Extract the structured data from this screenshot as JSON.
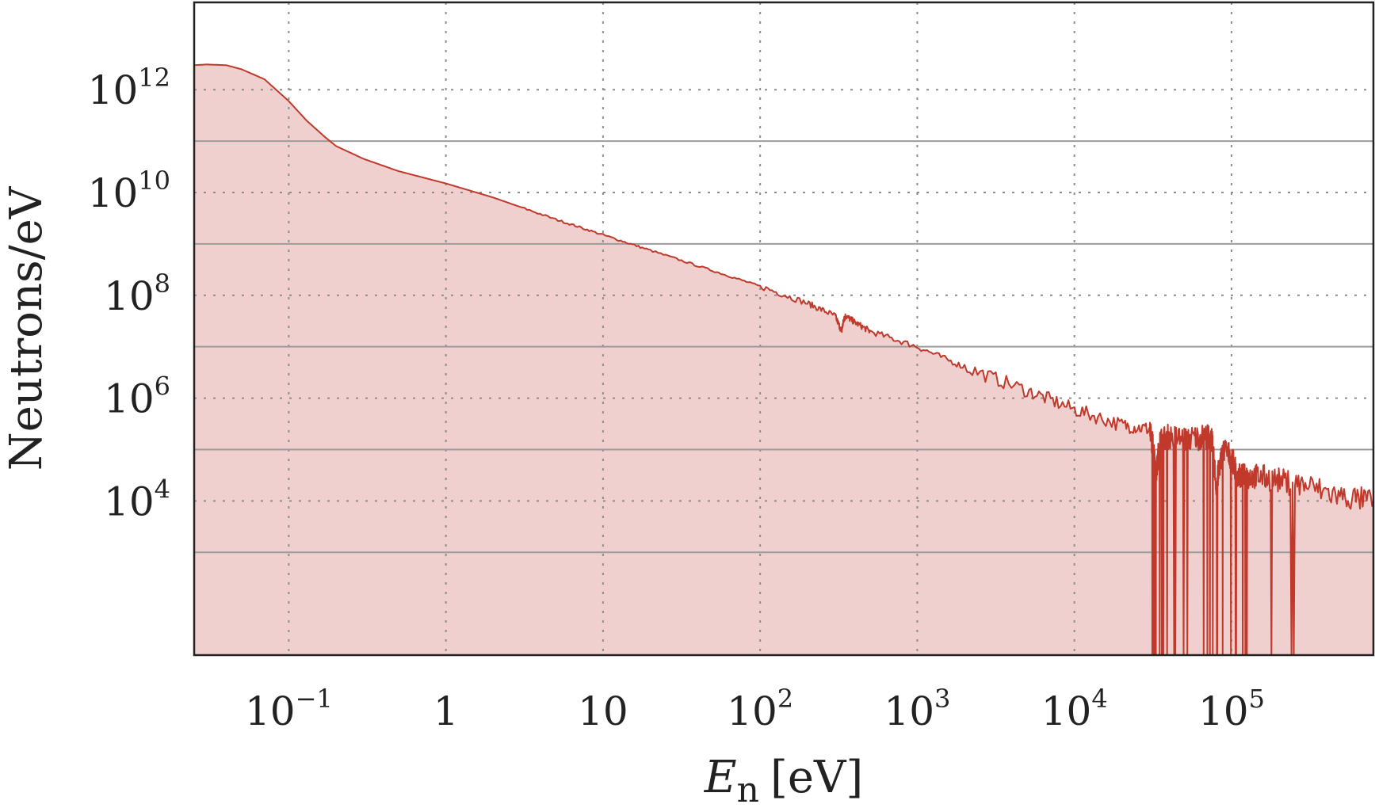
{
  "chart_data": {
    "type": "area",
    "xlabel_main": "E",
    "xlabel_sub": "n",
    "xlabel_unit": "[eV]",
    "ylabel": "Neutrons/eV",
    "xscale": "log",
    "yscale": "log",
    "xlim": [
      0.025,
      800000
    ],
    "ylim": [
      10,
      50000000000000.0
    ],
    "grid": "dotted major gridlines and solid gray gridlines at odd decades",
    "legend": "none",
    "colors": {
      "line": "#c0392b",
      "fill": "#efd0cf",
      "grid_dotted": "#8c8c8c",
      "grid_solid": "#9b9b9b"
    },
    "x_ticks": [
      {
        "value": 0.1,
        "base": "10",
        "exp": "−1"
      },
      {
        "value": 1,
        "base": "1",
        "exp": ""
      },
      {
        "value": 10,
        "base": "10",
        "exp": ""
      },
      {
        "value": 100,
        "base": "10",
        "exp": "2"
      },
      {
        "value": 1000,
        "base": "10",
        "exp": "3"
      },
      {
        "value": 10000,
        "base": "10",
        "exp": "4"
      },
      {
        "value": 100000,
        "base": "10",
        "exp": "5"
      }
    ],
    "y_ticks": [
      {
        "value": 1000000000000.0,
        "base": "10",
        "exp": "12"
      },
      {
        "value": 10000000000.0,
        "base": "10",
        "exp": "10"
      },
      {
        "value": 100000000.0,
        "base": "10",
        "exp": "8"
      },
      {
        "value": 1000000.0,
        "base": "10",
        "exp": "6"
      },
      {
        "value": 10000.0,
        "base": "10",
        "exp": "4"
      }
    ],
    "solid_gridlines_y": [
      100000000000.0,
      1000000000.0,
      10000000.0,
      100000.0,
      1000.0
    ],
    "series": [
      {
        "x": [
          0.025,
          0.03,
          0.04,
          0.05,
          0.07,
          0.1,
          0.13,
          0.17,
          0.2,
          0.3,
          0.5,
          1,
          2,
          5,
          10,
          20,
          50,
          100,
          200,
          300,
          330,
          340,
          350,
          400,
          500,
          1000,
          2000,
          5000,
          10000,
          20000,
          30000,
          32000,
          33000,
          35000,
          40000,
          50000,
          60000,
          70000,
          75000,
          80000,
          85000,
          90000,
          100000,
          110000,
          120000,
          130000,
          150000,
          200000,
          300000,
          500000,
          800000
        ],
        "y": [
          3000000000000.0,
          3100000000000.0,
          3000000000000.0,
          2500000000000.0,
          1600000000000.0,
          600000000000.0,
          250000000000.0,
          120000000000.0,
          80000000000.0,
          45000000000.0,
          26000000000.0,
          15000000000.0,
          8000000000.0,
          3000000000.0,
          1500000000.0,
          750000000.0,
          300000000.0,
          150000000.0,
          70000000.0,
          40000000.0,
          20000000.0,
          33000000.0,
          40000000.0,
          30000000.0,
          20000000.0,
          10000000.0,
          4000000.0,
          1400000.0,
          600000.0,
          300000.0,
          250000.0,
          100000.0,
          30000.0,
          150000.0,
          180000.0,
          160000.0,
          170000.0,
          180000.0,
          150000.0,
          20000.0,
          60000.0,
          100000.0,
          70000.0,
          30000.0,
          30000.0,
          30000.0,
          30000.0,
          25000.0,
          20000.0,
          12000.0,
          10000.0
        ]
      }
    ]
  }
}
